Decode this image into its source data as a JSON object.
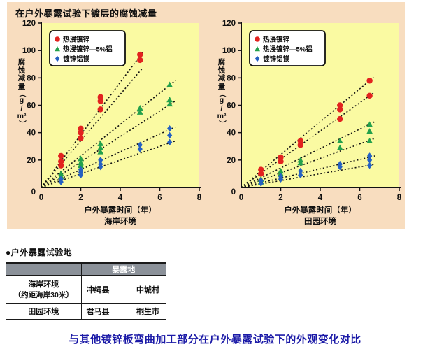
{
  "panel": {
    "title": "在户外暴露试验下镀层的腐蚀减量",
    "bg": "#f8ddbf"
  },
  "colors": {
    "plot_bg": "#fafaa2",
    "axis": "#111111",
    "trend_line": "#111111",
    "legend_bg": "#ffffff",
    "table_header_bg": "#8b9199",
    "caption_blue": "#1b1aa7"
  },
  "chart_data": [
    {
      "type": "scatter",
      "subtitle": "海岸环境",
      "xlabel": "户外暴露时间（年）",
      "ylabel": "腐蚀减量（g/m²）",
      "xlim": [
        0,
        8
      ],
      "ylim": [
        0,
        120
      ],
      "xticks": [
        0,
        2,
        4,
        6,
        8
      ],
      "yticks": [
        20,
        40,
        60,
        80,
        100,
        120
      ],
      "legend_position": "top-left",
      "grid": false,
      "series": [
        {
          "name": "热浸镀锌",
          "marker": "circle",
          "color": "#e2231f",
          "points": [
            [
              1,
              16
            ],
            [
              1,
              19
            ],
            [
              1,
              23
            ],
            [
              2,
              36
            ],
            [
              2,
              40
            ],
            [
              2,
              43
            ],
            [
              3,
              57
            ],
            [
              3,
              63
            ],
            [
              3,
              66
            ],
            [
              5,
              93
            ],
            [
              5,
              97
            ]
          ],
          "trendlines": [
            {
              "slope": 19.2,
              "xmax": 5.15
            },
            {
              "slope": 17.0,
              "xmax": 5.15
            }
          ]
        },
        {
          "name": "热浸镀锌—5%铝",
          "marker": "triangle",
          "color": "#23a14b",
          "points": [
            [
              1,
              8
            ],
            [
              1,
              10
            ],
            [
              2,
              16
            ],
            [
              2,
              18
            ],
            [
              2,
              21
            ],
            [
              3,
              26
            ],
            [
              3,
              29
            ],
            [
              3,
              32
            ],
            [
              5,
              55
            ],
            [
              5,
              58
            ],
            [
              6.5,
              61
            ],
            [
              6.5,
              64
            ],
            [
              6.5,
              75
            ]
          ],
          "trendlines": [
            {
              "slope": 11.5,
              "xmax": 6.8
            },
            {
              "slope": 9.3,
              "xmax": 6.8
            }
          ]
        },
        {
          "name": "镀锌铝镁",
          "marker": "diamond",
          "color": "#2561c2",
          "points": [
            [
              1,
              4
            ],
            [
              1,
              6
            ],
            [
              2,
              9
            ],
            [
              2,
              11
            ],
            [
              2,
              13
            ],
            [
              3,
              15
            ],
            [
              3,
              17
            ],
            [
              3,
              20
            ],
            [
              5,
              28
            ],
            [
              5,
              31
            ],
            [
              6.5,
              33
            ],
            [
              6.5,
              38
            ],
            [
              6.5,
              43
            ]
          ],
          "trendlines": [
            {
              "slope": 6.5,
              "xmax": 6.8
            },
            {
              "slope": 5.0,
              "xmax": 6.8
            }
          ]
        }
      ]
    },
    {
      "type": "scatter",
      "subtitle": "田园环境",
      "xlabel": "户外暴露时间（年）",
      "ylabel": "腐蚀减量（g/m²）",
      "xlim": [
        0,
        8
      ],
      "ylim": [
        0,
        120
      ],
      "xticks": [
        0,
        2,
        4,
        6,
        8
      ],
      "yticks": [
        20,
        40,
        60,
        80,
        100,
        120
      ],
      "legend_position": "top-left",
      "grid": false,
      "series": [
        {
          "name": "热浸镀锌",
          "marker": "circle",
          "color": "#e2231f",
          "points": [
            [
              1,
              10
            ],
            [
              1,
              13
            ],
            [
              2,
              19
            ],
            [
              2,
              22
            ],
            [
              3,
              31
            ],
            [
              3,
              34
            ],
            [
              5,
              50
            ],
            [
              5,
              57
            ],
            [
              5,
              60
            ],
            [
              6.5,
              67
            ],
            [
              6.5,
              78
            ]
          ],
          "trendlines": [
            {
              "slope": 12.0,
              "xmax": 6.7
            },
            {
              "slope": 10.3,
              "xmax": 6.7
            }
          ]
        },
        {
          "name": "热浸镀锌—5%铝",
          "marker": "triangle",
          "color": "#23a14b",
          "points": [
            [
              1,
              4
            ],
            [
              1,
              6
            ],
            [
              2,
              10
            ],
            [
              2,
              12
            ],
            [
              3,
              18
            ],
            [
              3,
              20
            ],
            [
              5,
              29
            ],
            [
              5,
              34
            ],
            [
              6.5,
              34
            ],
            [
              6.5,
              41
            ],
            [
              6.5,
              46
            ]
          ],
          "trendlines": [
            {
              "slope": 7.1,
              "xmax": 6.8
            },
            {
              "slope": 5.3,
              "xmax": 6.8
            }
          ]
        },
        {
          "name": "镀锌铝镁",
          "marker": "diamond",
          "color": "#2561c2",
          "points": [
            [
              1,
              3
            ],
            [
              1,
              5
            ],
            [
              2,
              6
            ],
            [
              2,
              8
            ],
            [
              3,
              9
            ],
            [
              3,
              12
            ],
            [
              5,
              15
            ],
            [
              5,
              17
            ],
            [
              6.5,
              16
            ],
            [
              6.5,
              20
            ],
            [
              6.5,
              23
            ]
          ],
          "trendlines": [
            {
              "slope": 3.4,
              "xmax": 6.8
            },
            {
              "slope": 2.5,
              "xmax": 6.8
            }
          ]
        }
      ]
    }
  ],
  "table": {
    "bullet": "●",
    "section_title": "户外暴露试验地",
    "header_col2": "暴露地",
    "rows": [
      {
        "env": "海岸环境",
        "env_note": "（约距海岸30米）",
        "prefecture": "冲绳县",
        "city": "中城村"
      },
      {
        "env": "田园环境",
        "env_note": "",
        "prefecture": "君马县",
        "city": "桐生市"
      }
    ]
  },
  "caption": {
    "text": "与其他镀锌板弯曲加工部分在户外暴露试验下的外观变化对比"
  }
}
